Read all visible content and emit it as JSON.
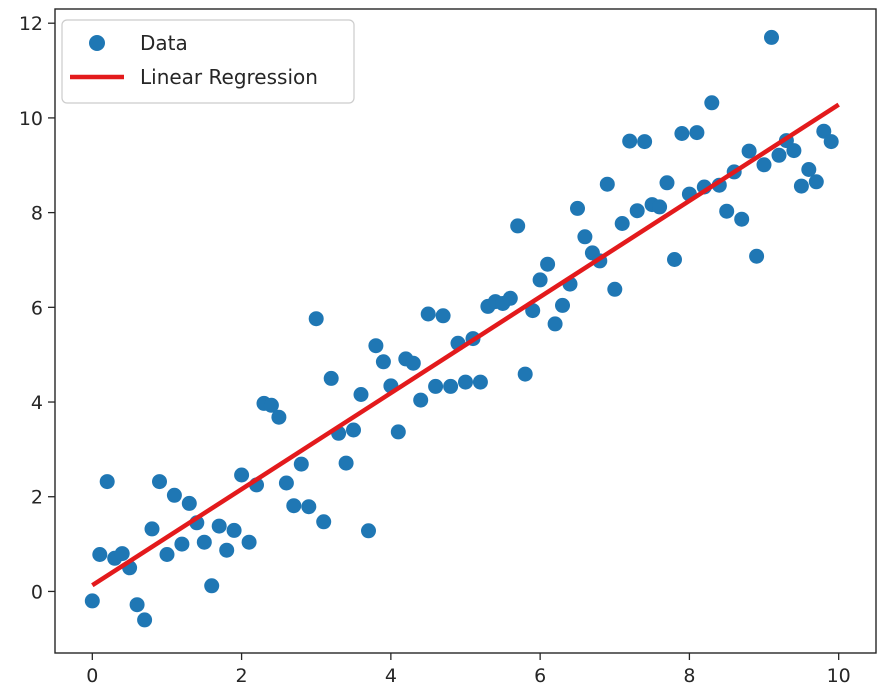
{
  "chart_data": {
    "type": "scatter",
    "title": "",
    "xlabel": "",
    "ylabel": "",
    "xlim": [
      -0.5,
      10.5
    ],
    "ylim": [
      -1.3,
      12.3
    ],
    "xticks": [
      0,
      2,
      4,
      6,
      8,
      10
    ],
    "yticks": [
      0,
      2,
      4,
      6,
      8,
      10,
      12
    ],
    "grid": false,
    "legend_position": "top-left",
    "colors": {
      "points": "#1f77b4",
      "line": "#e31a1c",
      "axes": "#262626"
    },
    "series": [
      {
        "name": "Data",
        "kind": "scatter",
        "points": [
          [
            0.0,
            -0.2
          ],
          [
            0.1,
            0.78
          ],
          [
            0.2,
            2.32
          ],
          [
            0.3,
            0.7
          ],
          [
            0.4,
            0.8
          ],
          [
            0.5,
            0.5
          ],
          [
            0.6,
            -0.28
          ],
          [
            0.7,
            -0.6
          ],
          [
            0.8,
            1.32
          ],
          [
            0.9,
            2.32
          ],
          [
            1.0,
            0.78
          ],
          [
            1.1,
            2.03
          ],
          [
            1.2,
            1.0
          ],
          [
            1.3,
            1.86
          ],
          [
            1.4,
            1.45
          ],
          [
            1.5,
            1.04
          ],
          [
            1.6,
            0.12
          ],
          [
            1.7,
            1.38
          ],
          [
            1.8,
            0.87
          ],
          [
            1.9,
            1.29
          ],
          [
            2.0,
            2.46
          ],
          [
            2.1,
            1.04
          ],
          [
            2.2,
            2.25
          ],
          [
            2.3,
            3.97
          ],
          [
            2.4,
            3.93
          ],
          [
            2.5,
            3.68
          ],
          [
            2.6,
            2.29
          ],
          [
            2.7,
            1.81
          ],
          [
            2.8,
            2.69
          ],
          [
            2.9,
            1.79
          ],
          [
            3.0,
            5.76
          ],
          [
            3.1,
            1.47
          ],
          [
            3.2,
            4.5
          ],
          [
            3.3,
            3.34
          ],
          [
            3.4,
            2.71
          ],
          [
            3.5,
            3.41
          ],
          [
            3.6,
            4.16
          ],
          [
            3.7,
            1.28
          ],
          [
            3.8,
            5.19
          ],
          [
            3.9,
            4.85
          ],
          [
            4.0,
            4.34
          ],
          [
            4.1,
            3.37
          ],
          [
            4.2,
            4.91
          ],
          [
            4.3,
            4.82
          ],
          [
            4.4,
            4.04
          ],
          [
            4.5,
            5.86
          ],
          [
            4.6,
            4.33
          ],
          [
            4.7,
            5.82
          ],
          [
            4.8,
            4.33
          ],
          [
            4.9,
            5.24
          ],
          [
            5.0,
            4.42
          ],
          [
            5.1,
            5.34
          ],
          [
            5.2,
            4.42
          ],
          [
            5.3,
            6.02
          ],
          [
            5.4,
            6.12
          ],
          [
            5.5,
            6.08
          ],
          [
            5.6,
            6.19
          ],
          [
            5.7,
            7.72
          ],
          [
            5.8,
            4.59
          ],
          [
            5.9,
            5.93
          ],
          [
            6.0,
            6.58
          ],
          [
            6.1,
            6.91
          ],
          [
            6.2,
            5.65
          ],
          [
            6.3,
            6.04
          ],
          [
            6.4,
            6.49
          ],
          [
            6.5,
            8.09
          ],
          [
            6.6,
            7.49
          ],
          [
            6.7,
            7.15
          ],
          [
            6.8,
            6.98
          ],
          [
            6.9,
            8.6
          ],
          [
            7.0,
            6.38
          ],
          [
            7.1,
            7.77
          ],
          [
            7.2,
            9.51
          ],
          [
            7.3,
            8.04
          ],
          [
            7.4,
            9.5
          ],
          [
            7.5,
            8.17
          ],
          [
            7.6,
            8.12
          ],
          [
            7.7,
            8.63
          ],
          [
            7.8,
            7.01
          ],
          [
            7.9,
            9.67
          ],
          [
            8.0,
            8.39
          ],
          [
            8.1,
            9.69
          ],
          [
            8.2,
            8.54
          ],
          [
            8.3,
            10.32
          ],
          [
            8.4,
            8.58
          ],
          [
            8.5,
            8.03
          ],
          [
            8.6,
            8.86
          ],
          [
            8.7,
            7.86
          ],
          [
            8.8,
            9.3
          ],
          [
            8.9,
            7.08
          ],
          [
            9.0,
            9.01
          ],
          [
            9.1,
            11.7
          ],
          [
            9.2,
            9.21
          ],
          [
            9.3,
            9.52
          ],
          [
            9.4,
            9.31
          ],
          [
            9.5,
            8.56
          ],
          [
            9.6,
            8.91
          ],
          [
            9.7,
            8.65
          ],
          [
            9.8,
            9.72
          ],
          [
            9.9,
            9.5
          ]
        ]
      },
      {
        "name": "Linear Regression",
        "kind": "line",
        "x": [
          0,
          10
        ],
        "y": [
          0.13,
          10.28
        ]
      }
    ]
  }
}
